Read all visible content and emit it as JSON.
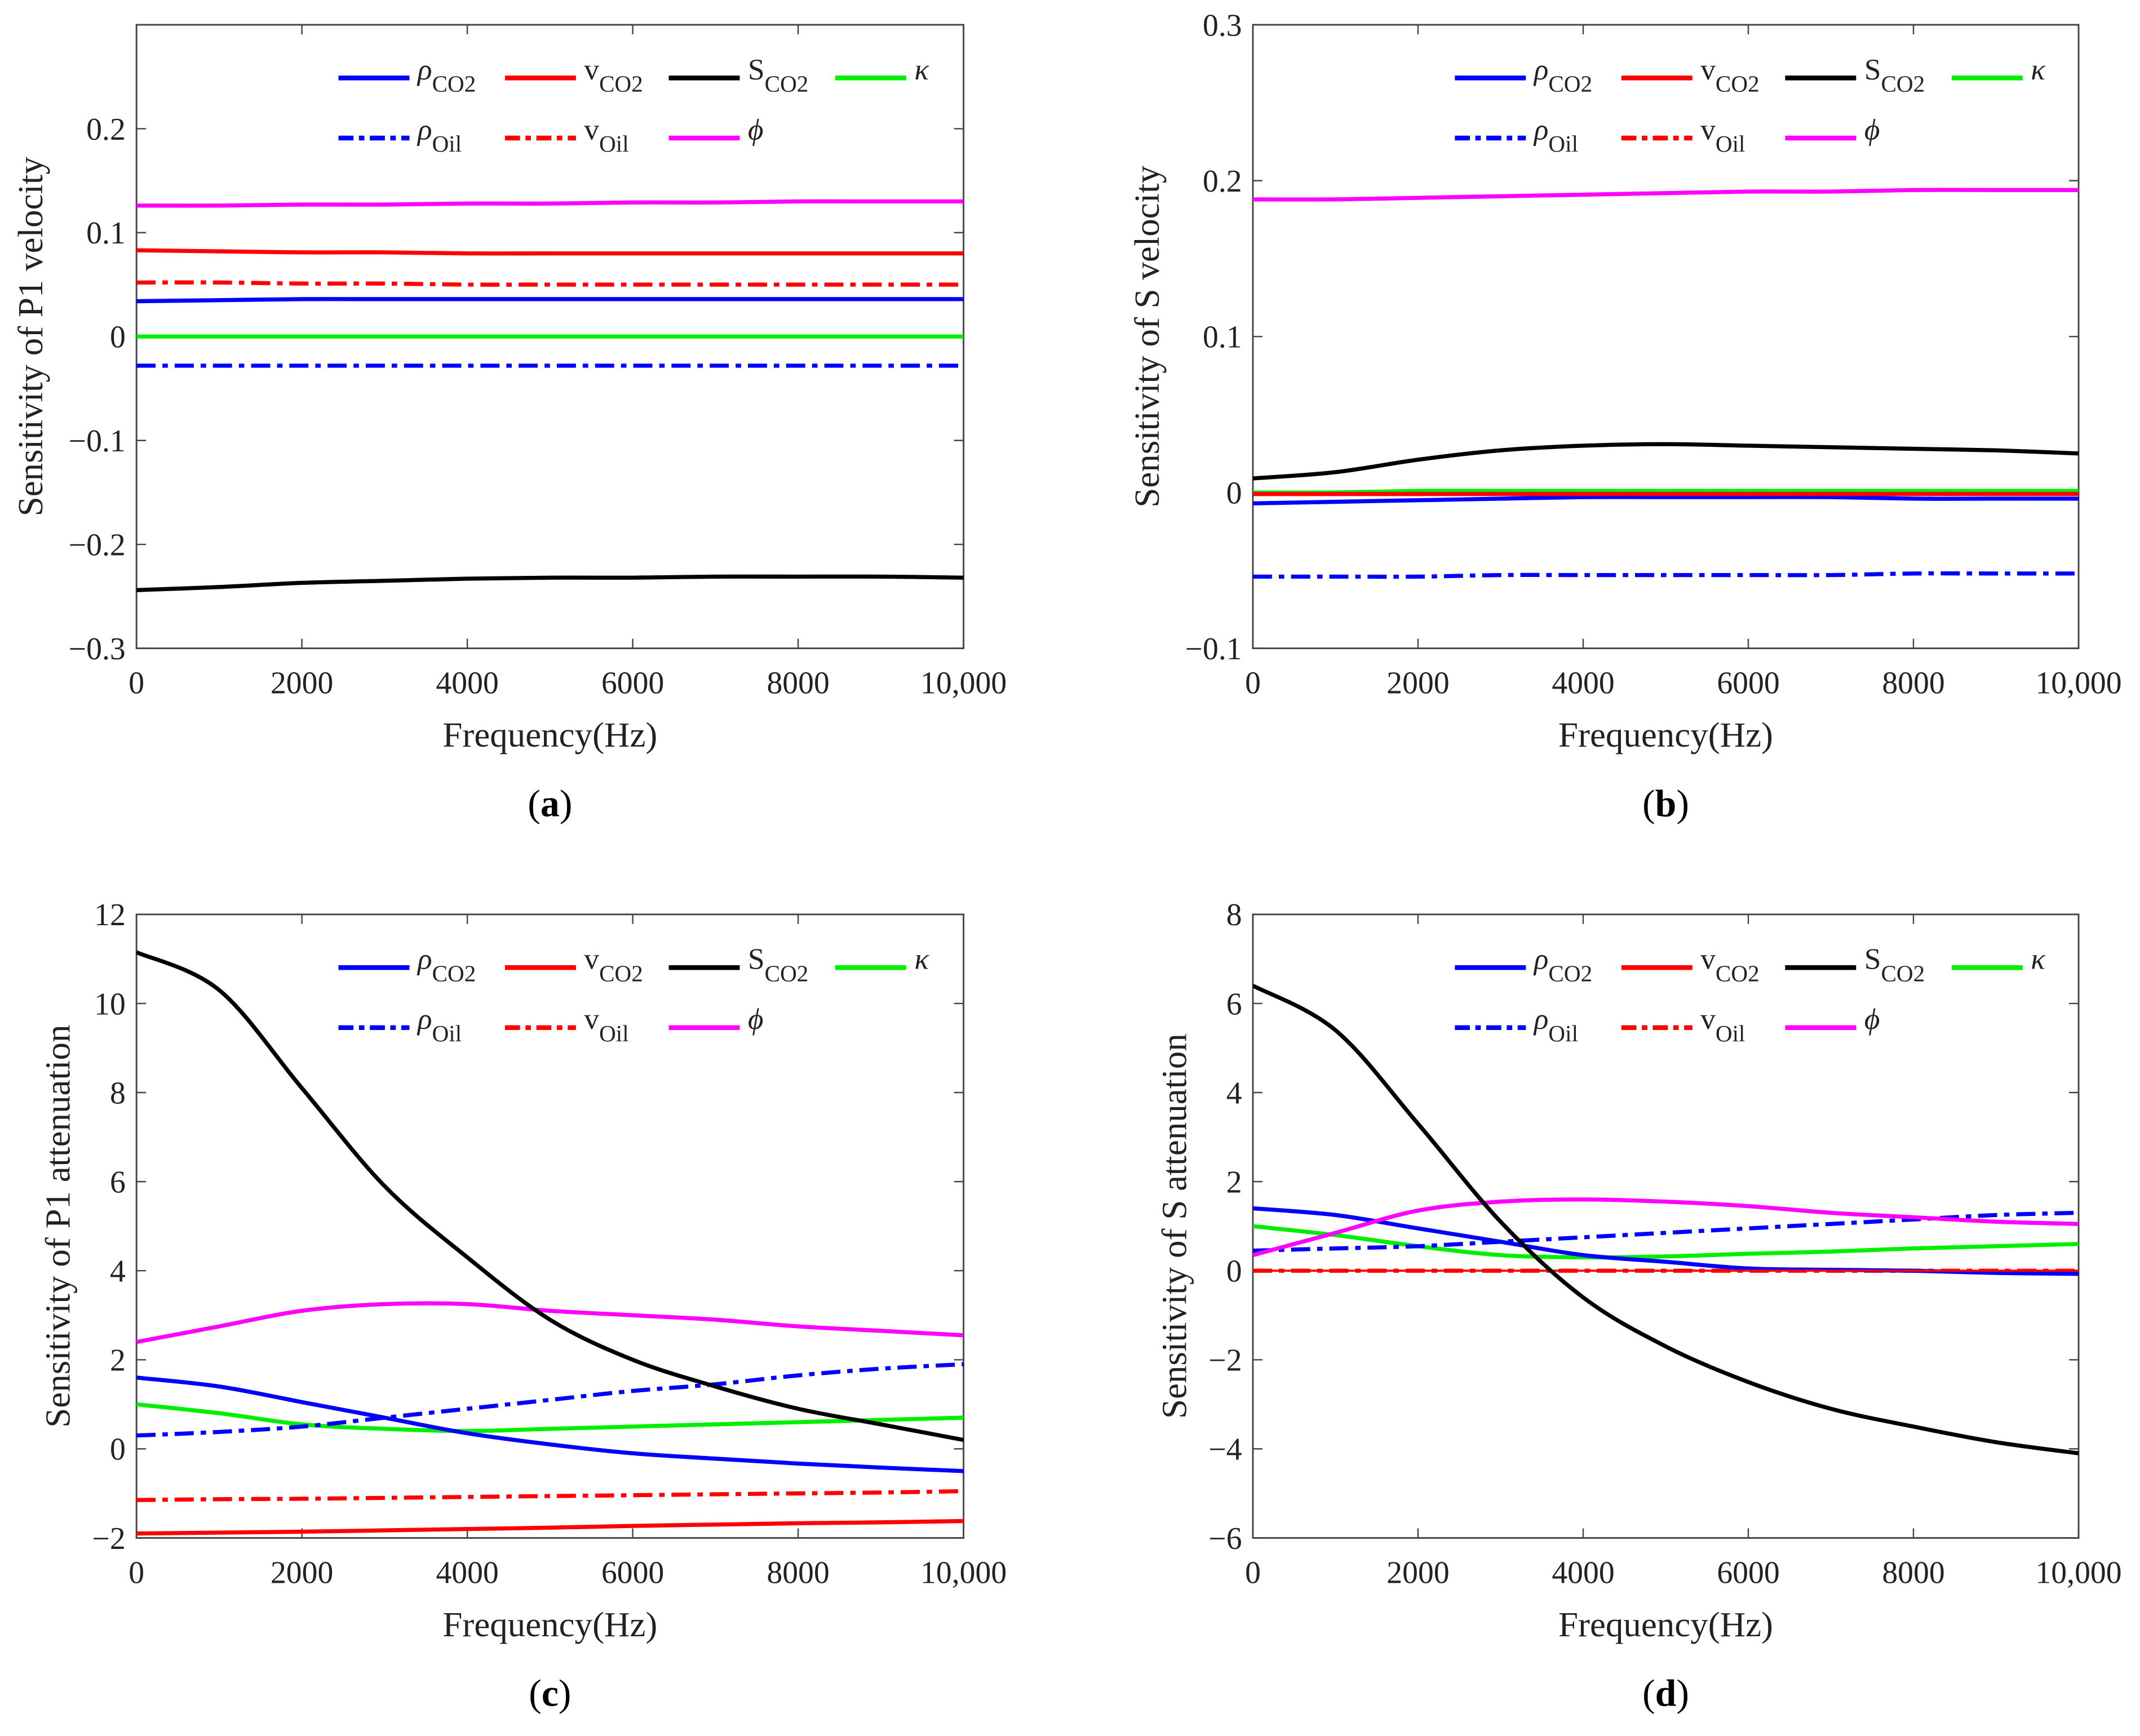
{
  "colors": {
    "rho_co2": "#0000ff",
    "v_co2": "#ff0000",
    "s_co2": "#000000",
    "kappa": "#00ee00",
    "rho_oil": "#0000ff",
    "v_oil": "#ff0000",
    "phi": "#ff00ff"
  },
  "legend": [
    {
      "key": "rho_co2",
      "main": "ρ",
      "sub": "CO2",
      "style": "solid"
    },
    {
      "key": "v_co2",
      "main": "v",
      "sub": "CO2",
      "style": "solid"
    },
    {
      "key": "s_co2",
      "main": "S",
      "sub": "CO2",
      "style": "solid"
    },
    {
      "key": "kappa",
      "main": "κ",
      "sub": "",
      "style": "solid"
    },
    {
      "key": "rho_oil",
      "main": "ρ",
      "sub": "Oil",
      "style": "dashdot"
    },
    {
      "key": "v_oil",
      "main": "v",
      "sub": "Oil",
      "style": "dashdot"
    },
    {
      "key": "phi",
      "main": "ϕ",
      "sub": "",
      "style": "solid"
    }
  ],
  "chart_data": [
    {
      "type": "line",
      "panel_label": "a",
      "xlabel": "Frequency(Hz)",
      "ylabel": "Sensitivity of P1 velocity",
      "xlim": [
        0,
        10000
      ],
      "ylim": [
        -0.3,
        0.3
      ],
      "xticks": [
        0,
        2000,
        4000,
        6000,
        8000,
        10000
      ],
      "xtick_labels": [
        "0",
        "2000",
        "4000",
        "6000",
        "8000",
        "10,000"
      ],
      "yticks": [
        -0.3,
        -0.2,
        -0.1,
        0,
        0.1,
        0.2
      ],
      "ytick_labels": [
        "−0.3",
        "−0.2",
        "−0.1",
        "0",
        "0.1",
        "0.2"
      ],
      "x": [
        0,
        1000,
        2000,
        3000,
        4000,
        5000,
        6000,
        7000,
        8000,
        9000,
        10000
      ],
      "series": [
        {
          "key": "rho_co2",
          "values": [
            0.034,
            0.035,
            0.036,
            0.036,
            0.036,
            0.036,
            0.036,
            0.036,
            0.036,
            0.036,
            0.036
          ]
        },
        {
          "key": "v_co2",
          "values": [
            0.083,
            0.082,
            0.081,
            0.081,
            0.08,
            0.08,
            0.08,
            0.08,
            0.08,
            0.08,
            0.08
          ]
        },
        {
          "key": "s_co2",
          "values": [
            -0.244,
            -0.241,
            -0.237,
            -0.235,
            -0.233,
            -0.232,
            -0.232,
            -0.231,
            -0.231,
            -0.231,
            -0.232
          ]
        },
        {
          "key": "kappa",
          "values": [
            0,
            0,
            0,
            0,
            0,
            0,
            0,
            0,
            0,
            0,
            0
          ]
        },
        {
          "key": "rho_oil",
          "values": [
            -0.028,
            -0.028,
            -0.028,
            -0.028,
            -0.028,
            -0.028,
            -0.028,
            -0.028,
            -0.028,
            -0.028,
            -0.028
          ]
        },
        {
          "key": "v_oil",
          "values": [
            0.052,
            0.052,
            0.051,
            0.051,
            0.05,
            0.05,
            0.05,
            0.05,
            0.05,
            0.05,
            0.05
          ]
        },
        {
          "key": "phi",
          "values": [
            0.126,
            0.126,
            0.127,
            0.127,
            0.128,
            0.128,
            0.129,
            0.129,
            0.13,
            0.13,
            0.13
          ]
        }
      ]
    },
    {
      "type": "line",
      "panel_label": "b",
      "xlabel": "Frequency(Hz)",
      "ylabel": "Sensitivity of S velocity",
      "xlim": [
        0,
        10000
      ],
      "ylim": [
        -0.1,
        0.3
      ],
      "xticks": [
        0,
        2000,
        4000,
        6000,
        8000,
        10000
      ],
      "xtick_labels": [
        "0",
        "2000",
        "4000",
        "6000",
        "8000",
        "10,000"
      ],
      "yticks": [
        -0.1,
        0,
        0.1,
        0.2,
        0.3
      ],
      "ytick_labels": [
        "−0.1",
        "0",
        "0.1",
        "0.2",
        "0.3"
      ],
      "x": [
        0,
        1000,
        2000,
        3000,
        4000,
        5000,
        6000,
        7000,
        8000,
        9000,
        10000
      ],
      "series": [
        {
          "key": "rho_co2",
          "values": [
            -0.007,
            -0.006,
            -0.005,
            -0.004,
            -0.003,
            -0.003,
            -0.003,
            -0.003,
            -0.004,
            -0.004,
            -0.004
          ]
        },
        {
          "key": "v_co2",
          "values": [
            -0.001,
            -0.001,
            -0.001,
            -0.001,
            -0.001,
            -0.001,
            -0.001,
            -0.001,
            -0.001,
            -0.001,
            -0.001
          ]
        },
        {
          "key": "s_co2",
          "values": [
            0.009,
            0.013,
            0.021,
            0.027,
            0.03,
            0.031,
            0.03,
            0.029,
            0.028,
            0.027,
            0.025
          ]
        },
        {
          "key": "kappa",
          "values": [
            0.0,
            0.0,
            0.001,
            0.001,
            0.001,
            0.001,
            0.001,
            0.001,
            0.001,
            0.001,
            0.001
          ]
        },
        {
          "key": "rho_oil",
          "values": [
            -0.054,
            -0.054,
            -0.054,
            -0.053,
            -0.053,
            -0.053,
            -0.053,
            -0.053,
            -0.052,
            -0.052,
            -0.052
          ]
        },
        {
          "key": "v_oil",
          "values": [
            -0.001,
            -0.001,
            -0.001,
            -0.001,
            -0.001,
            -0.001,
            -0.001,
            -0.001,
            -0.001,
            -0.001,
            -0.001
          ]
        },
        {
          "key": "phi",
          "values": [
            0.188,
            0.188,
            0.189,
            0.19,
            0.191,
            0.192,
            0.193,
            0.193,
            0.194,
            0.194,
            0.194
          ]
        }
      ]
    },
    {
      "type": "line",
      "panel_label": "c",
      "xlabel": "Frequency(Hz)",
      "ylabel": "Sensitivity of P1  attenuation",
      "xlim": [
        0,
        10000
      ],
      "ylim": [
        -2,
        12
      ],
      "xticks": [
        0,
        2000,
        4000,
        6000,
        8000,
        10000
      ],
      "xtick_labels": [
        "0",
        "2000",
        "4000",
        "6000",
        "8000",
        "10,000"
      ],
      "yticks": [
        -2,
        0,
        2,
        4,
        6,
        8,
        10,
        12
      ],
      "ytick_labels": [
        "−2",
        "0",
        "2",
        "4",
        "6",
        "8",
        "10",
        "12"
      ],
      "x": [
        0,
        1000,
        2000,
        3000,
        4000,
        5000,
        6000,
        7000,
        8000,
        9000,
        10000
      ],
      "series": [
        {
          "key": "rho_co2",
          "values": [
            1.6,
            1.4,
            1.05,
            0.7,
            0.35,
            0.1,
            -0.1,
            -0.22,
            -0.33,
            -0.42,
            -0.5
          ]
        },
        {
          "key": "v_co2",
          "values": [
            -1.9,
            -1.88,
            -1.86,
            -1.83,
            -1.8,
            -1.77,
            -1.73,
            -1.7,
            -1.67,
            -1.65,
            -1.62
          ]
        },
        {
          "key": "s_co2",
          "values": [
            11.15,
            10.3,
            8.1,
            5.9,
            4.3,
            2.9,
            2.0,
            1.4,
            0.9,
            0.55,
            0.2
          ]
        },
        {
          "key": "kappa",
          "values": [
            1.0,
            0.8,
            0.55,
            0.45,
            0.4,
            0.45,
            0.5,
            0.55,
            0.6,
            0.65,
            0.7
          ]
        },
        {
          "key": "rho_oil",
          "values": [
            0.3,
            0.38,
            0.5,
            0.7,
            0.9,
            1.1,
            1.3,
            1.45,
            1.65,
            1.8,
            1.9
          ]
        },
        {
          "key": "v_oil",
          "values": [
            -1.15,
            -1.13,
            -1.12,
            -1.1,
            -1.08,
            -1.06,
            -1.04,
            -1.02,
            -1.0,
            -0.98,
            -0.95
          ]
        },
        {
          "key": "phi",
          "values": [
            2.4,
            2.75,
            3.1,
            3.25,
            3.25,
            3.1,
            3.0,
            2.9,
            2.75,
            2.65,
            2.55
          ]
        }
      ]
    },
    {
      "type": "line",
      "panel_label": "d",
      "xlabel": "Frequency(Hz)",
      "ylabel": "Sensitivity of S  attenuation",
      "xlim": [
        0,
        10000
      ],
      "ylim": [
        -6,
        8
      ],
      "xticks": [
        0,
        2000,
        4000,
        6000,
        8000,
        10000
      ],
      "xtick_labels": [
        "0",
        "2000",
        "4000",
        "6000",
        "8000",
        "10,000"
      ],
      "yticks": [
        -6,
        -4,
        -2,
        0,
        2,
        4,
        6,
        8
      ],
      "ytick_labels": [
        "−6",
        "−4",
        "−2",
        "0",
        "2",
        "4",
        "6",
        "8"
      ],
      "x": [
        0,
        1000,
        2000,
        3000,
        4000,
        5000,
        6000,
        7000,
        8000,
        9000,
        10000
      ],
      "series": [
        {
          "key": "rho_co2",
          "values": [
            1.4,
            1.25,
            0.95,
            0.65,
            0.35,
            0.2,
            0.05,
            0.02,
            0.0,
            -0.05,
            -0.07
          ]
        },
        {
          "key": "v_co2",
          "values": [
            0,
            0,
            0,
            0,
            0,
            0,
            0,
            0,
            0,
            0,
            0
          ]
        },
        {
          "key": "s_co2",
          "values": [
            6.4,
            5.4,
            3.3,
            1.1,
            -0.6,
            -1.7,
            -2.5,
            -3.1,
            -3.5,
            -3.85,
            -4.1
          ]
        },
        {
          "key": "kappa",
          "values": [
            1.0,
            0.8,
            0.55,
            0.35,
            0.3,
            0.32,
            0.38,
            0.43,
            0.5,
            0.55,
            0.6
          ]
        },
        {
          "key": "rho_oil",
          "values": [
            0.45,
            0.5,
            0.55,
            0.65,
            0.75,
            0.85,
            0.95,
            1.05,
            1.15,
            1.25,
            1.3
          ]
        },
        {
          "key": "v_oil",
          "values": [
            0,
            0,
            0,
            0,
            0,
            0,
            0,
            0,
            0,
            0,
            0
          ]
        },
        {
          "key": "phi",
          "values": [
            0.35,
            0.85,
            1.35,
            1.55,
            1.6,
            1.55,
            1.45,
            1.3,
            1.2,
            1.1,
            1.05
          ]
        }
      ]
    }
  ]
}
